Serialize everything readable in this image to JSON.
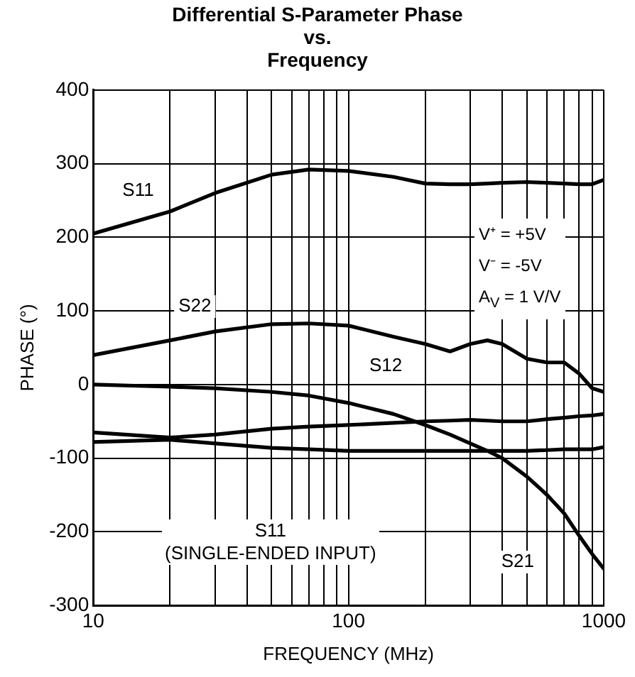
{
  "chart_data": {
    "type": "line",
    "title": "Differential S-Parameter Phase\nvs.\nFrequency",
    "xlabel": "FREQUENCY (MHz)",
    "ylabel": "PHASE (°)",
    "log": "x",
    "xlim": [
      10,
      1000
    ],
    "xticks": [
      10,
      {
        "value": 20,
        "label": null
      },
      {
        "value": 30,
        "label": null
      },
      {
        "value": 40,
        "label": null
      },
      {
        "value": 50,
        "label": null
      },
      {
        "value": 60,
        "label": null
      },
      {
        "value": 70,
        "label": null
      },
      {
        "value": 80,
        "label": null
      },
      {
        "value": 90,
        "label": null
      },
      100,
      {
        "value": 200,
        "label": null
      },
      {
        "value": 300,
        "label": null
      },
      {
        "value": 400,
        "label": null
      },
      {
        "value": 500,
        "label": null
      },
      {
        "value": 600,
        "label": null
      },
      {
        "value": 700,
        "label": null
      },
      {
        "value": 800,
        "label": null
      },
      {
        "value": 900,
        "label": null
      },
      1000
    ],
    "ylim": [
      -300,
      400
    ],
    "yticks": [
      -300,
      -200,
      -100,
      0,
      100,
      200,
      300,
      400
    ],
    "grid": true,
    "legend": false,
    "marker": "none",
    "line_style": "solid",
    "x": [
      10,
      20,
      30,
      50,
      70,
      100,
      150,
      200,
      250,
      300,
      350,
      400,
      500,
      600,
      700,
      800,
      900,
      1000
    ],
    "series": [
      {
        "color": "#000000",
        "values": [
          205,
          235,
          260,
          285,
          292,
          290,
          282,
          273,
          272,
          272,
          273,
          274,
          275,
          274,
          273,
          272,
          272,
          278
        ]
      },
      {
        "color": "#000000",
        "values": [
          40,
          60,
          72,
          82,
          83,
          80,
          65,
          55,
          45,
          55,
          60,
          55,
          35,
          30,
          30,
          15,
          -5,
          -10
        ]
      },
      {
        "color": "#000000",
        "values": [
          0,
          -3,
          -5,
          -10,
          -15,
          -25,
          -40,
          -55,
          -68,
          -80,
          -90,
          -100,
          -125,
          -150,
          -175,
          -205,
          -230,
          -250
        ]
      },
      {
        "color": "#000000",
        "values": [
          -65,
          -72,
          -68,
          -60,
          -57,
          -55,
          -52,
          -50,
          -49,
          -48,
          -49,
          -50,
          -50,
          -47,
          -45,
          -43,
          -42,
          -40
        ]
      },
      {
        "color": "#000000",
        "values": [
          -78,
          -75,
          -80,
          -86,
          -88,
          -90,
          -90,
          -90,
          -90,
          -90,
          -90,
          -90,
          -90,
          -89,
          -88,
          -88,
          -88,
          -85
        ]
      }
    ],
    "annotations": [
      {
        "text": "S11",
        "x": 15,
        "y": 263
      },
      {
        "text": "S22",
        "x": 25,
        "y": 106
      },
      {
        "text": "S12",
        "x": 140,
        "y": 25
      },
      {
        "text": "S21",
        "x": 460,
        "y": -241
      },
      "S11\n(SINGLE-ENDED INPUT)",
      "V⁺ = +5V",
      "V⁻ = -5V",
      "A$_{V}$ = 1 V/V"
    ]
  }
}
